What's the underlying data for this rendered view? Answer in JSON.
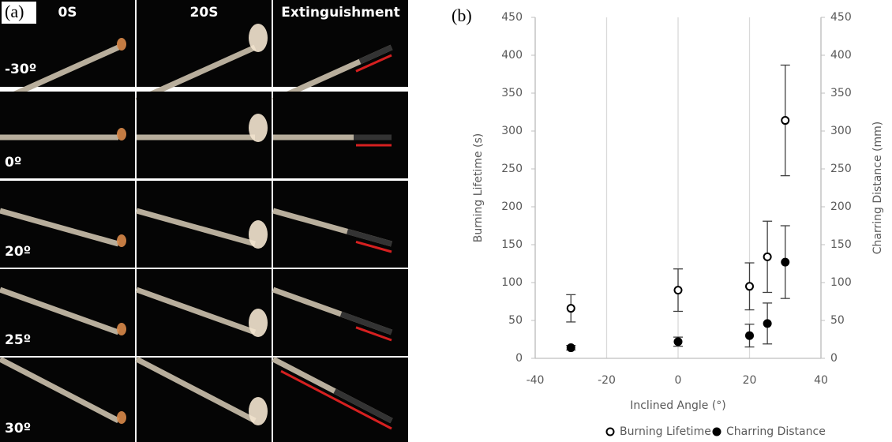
{
  "panel_a": {
    "label": "(a)",
    "columns": [
      "0S",
      "20S",
      "Extinguishment"
    ],
    "rows": [
      "-30º",
      "0º",
      "20º",
      "25º",
      "30º"
    ]
  },
  "chart_data": {
    "type": "scatter",
    "panel_label": "(b)",
    "xlabel": "Inclined Angle (°)",
    "ylabel": "Burning Lifetime (s)",
    "y2label": "Charring Distance (mm)",
    "xlim": [
      -40,
      40
    ],
    "xticks": [
      -40,
      -20,
      0,
      20,
      40
    ],
    "ylim": [
      0,
      450
    ],
    "yticks": [
      0,
      50,
      100,
      150,
      200,
      250,
      300,
      350,
      400,
      450
    ],
    "y2lim": [
      0,
      450
    ],
    "y2ticks": [
      0,
      50,
      100,
      150,
      200,
      250,
      300,
      350,
      400,
      450
    ],
    "grid": "x",
    "legend": "bottom",
    "series": [
      {
        "name": "Burning Lifetime",
        "color": "#000000",
        "marker": "open",
        "x": [
          -30,
          0,
          20,
          25,
          30
        ],
        "values": [
          66,
          90,
          95,
          134,
          314
        ],
        "errors": [
          18,
          28,
          31,
          47,
          73
        ]
      },
      {
        "name": "Charring Distance",
        "color": "#000000",
        "marker": "filled",
        "axis": "y2",
        "x": [
          -30,
          0,
          20,
          25,
          30
        ],
        "values": [
          14,
          22,
          30,
          46,
          127
        ],
        "errors": [
          3,
          6,
          15,
          27,
          48
        ]
      }
    ]
  }
}
